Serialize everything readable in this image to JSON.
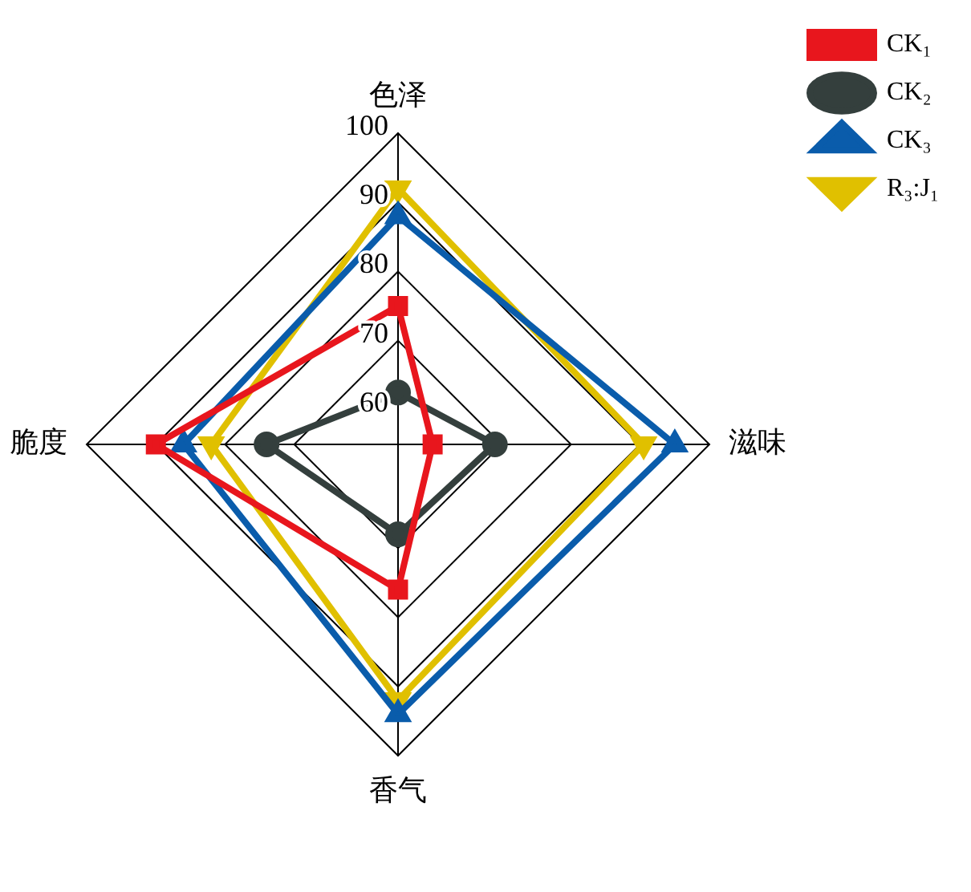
{
  "chart_data": {
    "type": "radar",
    "categories": [
      "色泽",
      "滋味",
      "香气",
      "脆度"
    ],
    "series": [
      {
        "name": "CK₁",
        "color": "#e8161d",
        "marker": "square",
        "values": [
          75,
          60,
          76,
          90
        ]
      },
      {
        "name": "CK₂",
        "color": "#343f3d",
        "marker": "circle",
        "values": [
          62.5,
          69,
          68,
          74
        ]
      },
      {
        "name": "CK₃",
        "color": "#0a5cab",
        "marker": "triangle",
        "values": [
          88,
          95,
          94,
          86
        ]
      },
      {
        "name": "R₃:J₁",
        "color": "#e0c000",
        "marker": "triangle-down",
        "values": [
          92,
          90.5,
          92,
          82
        ]
      }
    ],
    "ylim": [
      55,
      100
    ],
    "yticks": [
      60,
      70,
      80,
      90,
      100
    ],
    "grid": true,
    "legend": "top right",
    "line_style": "solid"
  }
}
